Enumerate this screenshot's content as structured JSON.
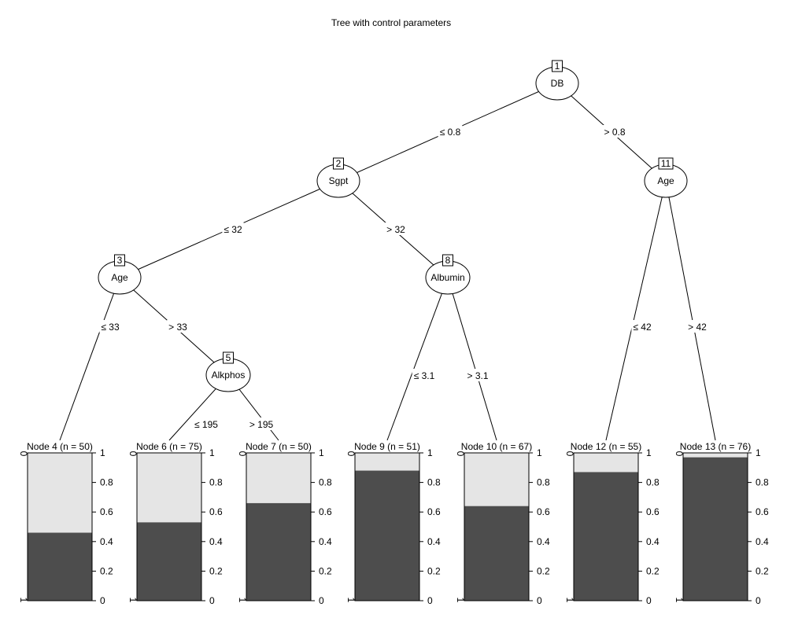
{
  "title": "Tree with control parameters",
  "colors": {
    "class0": "#e5e5e5",
    "class1": "#4d4d4d",
    "line": "#000000"
  },
  "inner_nodes": [
    {
      "id": "1",
      "label": "DB"
    },
    {
      "id": "2",
      "label": "Sgpt"
    },
    {
      "id": "3",
      "label": "Age"
    },
    {
      "id": "5",
      "label": "Alkphos"
    },
    {
      "id": "8",
      "label": "Albumin"
    },
    {
      "id": "11",
      "label": "Age"
    }
  ],
  "edge_labels": [
    {
      "from": "1",
      "to": "2",
      "text": "≤ 0.8"
    },
    {
      "from": "1",
      "to": "11",
      "text": "> 0.8"
    },
    {
      "from": "2",
      "to": "3",
      "text": "≤ 32"
    },
    {
      "from": "2",
      "to": "8",
      "text": "> 32"
    },
    {
      "from": "3",
      "to": "4",
      "text": "≤ 33"
    },
    {
      "from": "3",
      "to": "5",
      "text": "> 33"
    },
    {
      "from": "5",
      "to": "6",
      "text": "≤ 195"
    },
    {
      "from": "5",
      "to": "7",
      "text": "> 195"
    },
    {
      "from": "8",
      "to": "9",
      "text": "≤ 3.1"
    },
    {
      "from": "8",
      "to": "10",
      "text": "> 3.1"
    },
    {
      "from": "11",
      "to": "12",
      "text": "≤ 42"
    },
    {
      "from": "11",
      "to": "13",
      "text": "> 42"
    }
  ],
  "terminal_nodes": [
    {
      "id": "4",
      "label": "Node 4 (n = 50)",
      "prop_class1": 0.46
    },
    {
      "id": "6",
      "label": "Node 6 (n = 75)",
      "prop_class1": 0.53
    },
    {
      "id": "7",
      "label": "Node 7 (n = 50)",
      "prop_class1": 0.66
    },
    {
      "id": "9",
      "label": "Node 9 (n = 51)",
      "prop_class1": 0.88
    },
    {
      "id": "10",
      "label": "Node 10 (n = 67)",
      "prop_class1": 0.64
    },
    {
      "id": "12",
      "label": "Node 12 (n = 55)",
      "prop_class1": 0.87
    },
    {
      "id": "13",
      "label": "Node 13 (n = 76)",
      "prop_class1": 0.97
    }
  ],
  "bar_axis": {
    "right_ticks": [
      "0",
      "0.2",
      "0.4",
      "0.6",
      "0.8",
      "1"
    ],
    "left_top": "0",
    "left_bottom": "1"
  }
}
